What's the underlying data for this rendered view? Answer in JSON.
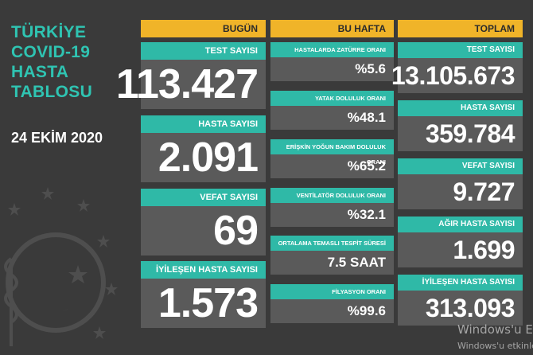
{
  "title_lines": [
    "TÜRKİYE",
    "COVID-19",
    "HASTA",
    "TABLOSU"
  ],
  "date": "24 EKİM 2020",
  "headers": {
    "today": "BUGÜN",
    "this_week": "BU HAFTA",
    "total": "TOPLAM"
  },
  "today": [
    {
      "label": "TEST SAYISI",
      "value": "113.427"
    },
    {
      "label": "HASTA SAYISI",
      "value": "2.091"
    },
    {
      "label": "VEFAT SAYISI",
      "value": "69"
    },
    {
      "label": "İYİLEŞEN HASTA SAYISI",
      "value": "1.573"
    }
  ],
  "this_week": [
    {
      "label": "HASTALARDA ZATÜRRE ORANI",
      "value": "%5.6"
    },
    {
      "label": "YATAK DOLULUK ORANI",
      "value": "%48.1"
    },
    {
      "label": "ERİŞKİN YOĞUN BAKIM DOLULUK ORANI",
      "value": "%65.2"
    },
    {
      "label": "VENTİLATÖR DOLULUK ORANI",
      "value": "%32.1"
    },
    {
      "label": "ORTALAMA TEMASLI TESPİT SÜRESİ",
      "value": "7.5 SAAT"
    },
    {
      "label": "FİLYASYON ORANI",
      "value": "%99.6"
    }
  ],
  "total": [
    {
      "label": "TEST SAYISI",
      "value": "13.105.673"
    },
    {
      "label": "HASTA SAYISI",
      "value": "359.784"
    },
    {
      "label": "VEFAT SAYISI",
      "value": "9.727"
    },
    {
      "label": "AĞIR HASTA SAYISI",
      "value": "1.699"
    },
    {
      "label": "İYİLEŞEN HASTA SAYISI",
      "value": "313.093"
    }
  ],
  "watermark": {
    "line1": "Windows'u Etk",
    "line2": "Windows'u etkinleşt"
  },
  "colors": {
    "background": "#3a3a3a",
    "teal": "#2fb9a7",
    "yellow": "#f0b429",
    "panel": "#5a5a5a"
  }
}
